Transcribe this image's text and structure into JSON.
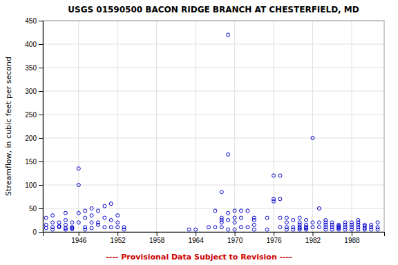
{
  "chart_data": {
    "type": "scatter",
    "title": "USGS 01590500 BACON RIDGE BRANCH AT CHESTERFIELD, MD",
    "y_label": "Streamflow, in cubic feet per second",
    "annotations": [
      {
        "text": "---- Provisional Data Subject to Revision ----",
        "color": "#cc0000"
      }
    ],
    "color": "#0000cc",
    "marker": "open-circle",
    "grid": true,
    "xlim": [
      1940.5,
      1993
    ],
    "ylim": [
      0,
      450
    ],
    "xticks": [
      1946,
      1952,
      1958,
      1964,
      1970,
      1976,
      1982,
      1988
    ],
    "yticks": [
      0,
      50,
      100,
      150,
      200,
      250,
      300,
      350,
      400,
      450
    ],
    "x": [
      1941,
      1941,
      1941,
      1942,
      1942,
      1942,
      1942,
      1943,
      1943,
      1943,
      1944,
      1944,
      1944,
      1944,
      1944,
      1945,
      1945,
      1945,
      1945,
      1946,
      1946,
      1946,
      1946,
      1947,
      1947,
      1947,
      1947,
      1948,
      1948,
      1948,
      1948,
      1949,
      1949,
      1949,
      1950,
      1950,
      1950,
      1951,
      1951,
      1951,
      1952,
      1952,
      1952,
      1953,
      1953,
      1963,
      1964,
      1966,
      1967,
      1967,
      1968,
      1968,
      1968,
      1968,
      1968,
      1969,
      1969,
      1969,
      1969,
      1969,
      1970,
      1970,
      1970,
      1970,
      1971,
      1971,
      1971,
      1972,
      1972,
      1973,
      1973,
      1973,
      1973,
      1975,
      1975,
      1976,
      1976,
      1976,
      1977,
      1977,
      1977,
      1977,
      1978,
      1978,
      1978,
      1978,
      1979,
      1979,
      1979,
      1980,
      1980,
      1980,
      1980,
      1980,
      1980,
      1981,
      1981,
      1981,
      1981,
      1981,
      1982,
      1982,
      1982,
      1983,
      1983,
      1983,
      1984,
      1984,
      1984,
      1984,
      1984,
      1985,
      1985,
      1985,
      1985,
      1986,
      1986,
      1986,
      1986,
      1986,
      1987,
      1987,
      1987,
      1987,
      1988,
      1988,
      1988,
      1988,
      1989,
      1989,
      1989,
      1989,
      1989,
      1990,
      1990,
      1990,
      1990,
      1991,
      1991,
      1991,
      1992,
      1992,
      1992
    ],
    "values": [
      15,
      30,
      8,
      20,
      35,
      10,
      5,
      10,
      20,
      12,
      8,
      15,
      25,
      40,
      5,
      10,
      20,
      8,
      6,
      135,
      100,
      40,
      20,
      45,
      30,
      10,
      5,
      50,
      35,
      20,
      8,
      45,
      20,
      15,
      55,
      30,
      10,
      60,
      25,
      10,
      35,
      20,
      10,
      10,
      5,
      5,
      5,
      10,
      45,
      10,
      85,
      30,
      25,
      20,
      10,
      420,
      165,
      40,
      25,
      5,
      45,
      30,
      20,
      5,
      45,
      30,
      10,
      45,
      10,
      30,
      25,
      15,
      5,
      30,
      5,
      120,
      70,
      65,
      120,
      70,
      30,
      10,
      30,
      20,
      10,
      5,
      25,
      10,
      5,
      30,
      20,
      15,
      10,
      8,
      5,
      25,
      15,
      10,
      8,
      5,
      200,
      20,
      10,
      50,
      20,
      10,
      25,
      20,
      15,
      10,
      5,
      20,
      15,
      10,
      5,
      15,
      12,
      10,
      8,
      5,
      20,
      15,
      10,
      5,
      20,
      15,
      10,
      5,
      25,
      20,
      15,
      10,
      5,
      15,
      12,
      8,
      5,
      15,
      10,
      5,
      20,
      10,
      5
    ]
  }
}
